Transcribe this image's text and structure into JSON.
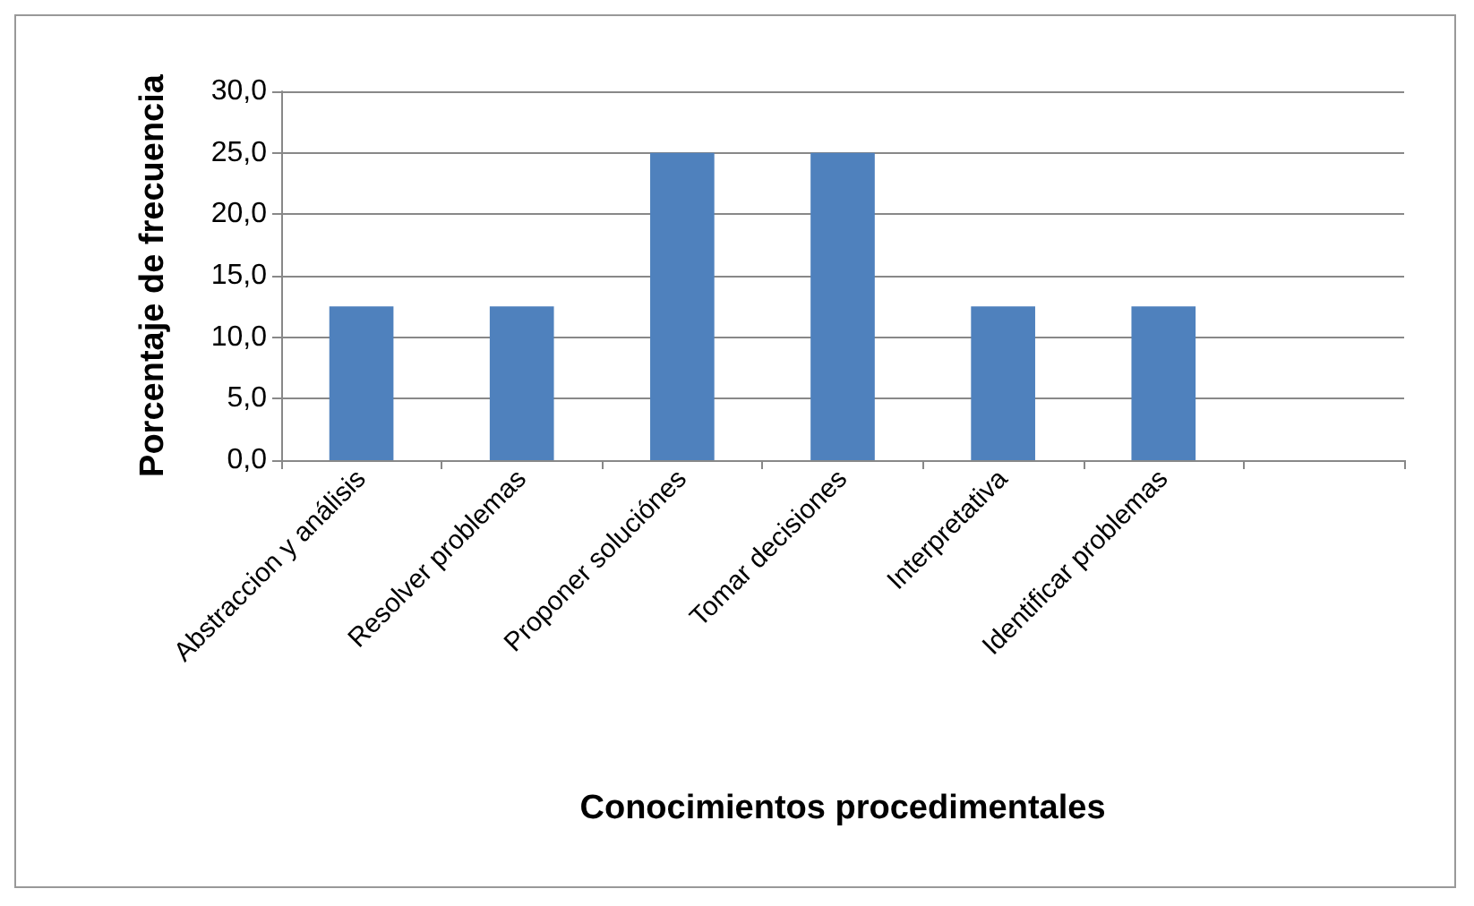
{
  "chart_data": {
    "type": "bar",
    "xlabel": "Conocimientos procedimentales",
    "ylabel": "Porcentaje de frecuencia",
    "categories": [
      "Abstraccion y análisis",
      "Resolver problemas",
      "Proponer soluciónes",
      "Tomar decisiones",
      "Interpretativa",
      "Identificar problemas",
      null
    ],
    "values": [
      12.5,
      12.5,
      25,
      25,
      12.5,
      12.5,
      null
    ],
    "color": "#4f81bd",
    "ylim": [
      0,
      30
    ],
    "yticks": [
      {
        "value": 0,
        "label": "0,0"
      },
      {
        "value": 5,
        "label": "5,0"
      },
      {
        "value": 10,
        "label": "10,0"
      },
      {
        "value": 15,
        "label": "15,0"
      },
      {
        "value": 20,
        "label": "20,0"
      },
      {
        "value": 25,
        "label": "25,0"
      },
      {
        "value": 30,
        "label": "30,0"
      }
    ],
    "grid": "y"
  }
}
